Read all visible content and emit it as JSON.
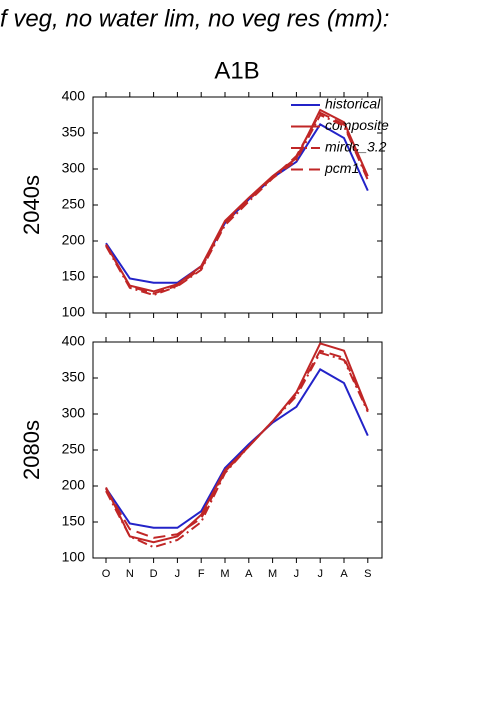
{
  "title": "f veg, no water lim, no veg res (mm):",
  "chart_data": [
    {
      "type": "line",
      "subtitle": "A1B",
      "row_label": "2040s",
      "ylim": [
        100,
        400
      ],
      "yticks": [
        100,
        150,
        200,
        250,
        300,
        350,
        400
      ],
      "legend": "upper right",
      "series": [
        {
          "name": "historical",
          "color": "#2323c8",
          "linestyle": "solid",
          "values": [
            197,
            148,
            142,
            142,
            165,
            225,
            258,
            288,
            310,
            362,
            343,
            270
          ]
        },
        {
          "name": "composite",
          "color": "#c02626",
          "linestyle": "solid",
          "values": [
            195,
            138,
            130,
            140,
            165,
            228,
            260,
            290,
            315,
            382,
            365,
            290
          ]
        },
        {
          "name": "mirdc_3.2",
          "color": "#c02626",
          "linestyle": "dashdot",
          "values": [
            193,
            135,
            125,
            137,
            160,
            222,
            255,
            287,
            312,
            375,
            360,
            285
          ]
        },
        {
          "name": "pcm1",
          "color": "#c02626",
          "linestyle": "dashed",
          "values": [
            195,
            137,
            127,
            138,
            162,
            225,
            257,
            288,
            318,
            378,
            362,
            287
          ]
        }
      ]
    },
    {
      "type": "line",
      "row_label": "2080s",
      "categories": [
        "O",
        "N",
        "D",
        "J",
        "F",
        "M",
        "A",
        "M",
        "J",
        "J",
        "A",
        "S"
      ],
      "ylim": [
        100,
        400
      ],
      "yticks": [
        100,
        150,
        200,
        250,
        300,
        350,
        400
      ],
      "series": [
        {
          "color": "#2323c8",
          "linestyle": "solid",
          "values": [
            197,
            148,
            142,
            142,
            165,
            225,
            258,
            288,
            310,
            362,
            343,
            270
          ]
        },
        {
          "color": "#c02626",
          "linestyle": "solid",
          "values": [
            198,
            130,
            122,
            130,
            160,
            222,
            255,
            290,
            330,
            398,
            388,
            305
          ]
        },
        {
          "color": "#c02626",
          "linestyle": "dashdot",
          "values": [
            193,
            130,
            115,
            125,
            150,
            218,
            255,
            290,
            325,
            385,
            375,
            303
          ]
        },
        {
          "color": "#c02626",
          "linestyle": "dashed",
          "values": [
            196,
            140,
            128,
            133,
            155,
            220,
            255,
            290,
            328,
            388,
            378,
            305
          ]
        }
      ]
    }
  ]
}
